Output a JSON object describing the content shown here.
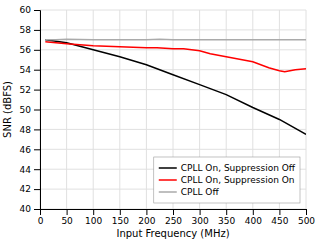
{
  "chart_data": {
    "type": "line",
    "xlabel": "Input Frequency (MHz)",
    "ylabel": "SNR (dBFS)",
    "xlim": [
      0,
      500
    ],
    "ylim": [
      40,
      60
    ],
    "xticks": [
      0,
      50,
      100,
      150,
      200,
      250,
      300,
      350,
      400,
      450,
      500
    ],
    "yticks": [
      40,
      42,
      44,
      46,
      48,
      50,
      52,
      54,
      56,
      58,
      60
    ],
    "grid": true,
    "legend": "lower right",
    "series": [
      {
        "name": "CPLL On, Suppression Off",
        "color": "#000000",
        "x": [
          10,
          50,
          100,
          150,
          200,
          250,
          300,
          350,
          400,
          450,
          500
        ],
        "values": [
          57.0,
          56.7,
          56.0,
          55.3,
          54.5,
          53.5,
          52.5,
          51.5,
          50.2,
          49.0,
          47.5
        ]
      },
      {
        "name": "CPLL On, Suppression On",
        "color": "#ff0000",
        "x": [
          10,
          50,
          100,
          150,
          200,
          220,
          250,
          270,
          300,
          320,
          350,
          400,
          430,
          450,
          460,
          480,
          500
        ],
        "values": [
          56.8,
          56.6,
          56.4,
          56.3,
          56.2,
          56.2,
          56.1,
          56.1,
          55.9,
          55.6,
          55.3,
          54.8,
          54.2,
          53.9,
          53.8,
          54.0,
          54.1
        ]
      },
      {
        "name": "CPLL Off",
        "color": "#aaaaaa",
        "x": [
          10,
          30,
          50,
          100,
          150,
          200,
          225,
          250,
          300,
          350,
          400,
          450,
          500
        ],
        "values": [
          57.0,
          57.0,
          57.05,
          57.0,
          57.0,
          57.0,
          57.05,
          57.0,
          57.0,
          57.0,
          57.0,
          57.0,
          57.0
        ]
      }
    ]
  }
}
